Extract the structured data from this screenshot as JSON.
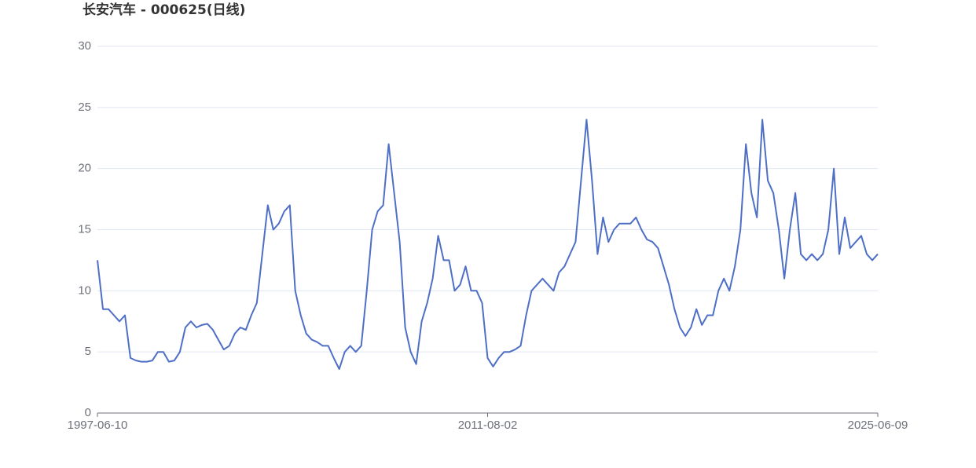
{
  "chart_data": {
    "type": "line",
    "title": "长安汽车 - 000625(日线)",
    "categories": [
      "1997-06-10",
      null,
      null,
      null,
      null,
      null,
      null,
      null,
      null,
      null,
      null,
      null,
      null,
      null,
      null,
      null,
      null,
      null,
      null,
      null,
      null,
      null,
      null,
      null,
      null,
      null,
      null,
      null,
      null,
      null,
      null,
      null,
      null,
      null,
      null,
      null,
      null,
      null,
      null,
      null,
      null,
      null,
      null,
      null,
      null,
      null,
      null,
      null,
      null,
      null,
      null,
      null,
      null,
      null,
      null,
      null,
      null,
      null,
      null,
      null,
      null,
      null,
      null,
      null,
      null,
      null,
      null,
      null,
      null,
      null,
      null,
      "2011-08-02",
      null,
      null,
      null,
      null,
      null,
      null,
      null,
      null,
      null,
      null,
      null,
      null,
      null,
      null,
      null,
      null,
      null,
      null,
      null,
      null,
      null,
      null,
      null,
      null,
      null,
      null,
      null,
      null,
      null,
      null,
      null,
      null,
      null,
      null,
      null,
      null,
      null,
      null,
      null,
      null,
      null,
      null,
      null,
      null,
      null,
      null,
      null,
      null,
      null,
      null,
      null,
      null,
      null,
      null,
      null,
      null,
      null,
      null,
      null,
      null,
      null,
      null,
      null,
      null,
      null,
      null,
      null,
      null,
      null,
      null,
      "2025-06-09"
    ],
    "series": [
      {
        "name": "000625",
        "color": "#4e6fc6",
        "values": [
          12.5,
          8.5,
          8.5,
          8,
          7.5,
          8,
          4.5,
          4.3,
          4.2,
          4.2,
          4.3,
          5,
          5,
          4.2,
          4.3,
          5,
          7,
          7.5,
          7,
          7.2,
          7.3,
          6.8,
          6,
          5.2,
          5.5,
          6.5,
          7,
          6.8,
          8,
          9,
          13,
          17,
          15,
          15.5,
          16.5,
          17,
          10,
          8,
          6.5,
          6,
          5.8,
          5.5,
          5.5,
          4.5,
          3.6,
          5,
          5.5,
          5,
          5.5,
          10,
          15,
          16.5,
          17,
          22,
          18,
          14,
          7,
          5,
          4,
          7.5,
          9,
          11,
          14.5,
          12.5,
          12.5,
          10,
          10.5,
          12,
          10,
          10,
          9,
          4.5,
          3.8,
          4.5,
          5,
          5,
          5.2,
          5.5,
          8,
          10,
          10.5,
          11,
          10.5,
          10,
          11.5,
          12,
          13,
          14,
          19,
          24,
          19,
          13,
          16,
          14,
          15,
          15.5,
          15.5,
          15.5,
          16,
          15,
          14.2,
          14,
          13.5,
          12,
          10.5,
          8.5,
          7,
          6.3,
          7,
          8.5,
          7.2,
          8,
          8,
          10,
          11,
          10,
          12,
          15,
          22,
          18,
          16,
          24,
          19,
          18,
          15,
          11,
          15,
          18,
          13,
          12.5,
          13,
          12.5,
          13,
          15,
          20,
          13,
          16,
          13.5,
          14,
          14.5,
          13,
          12.5,
          13
        ]
      }
    ],
    "ylim": [
      0,
      30
    ],
    "yticks": [
      0,
      5,
      10,
      15,
      20,
      25,
      30
    ],
    "grid": true
  }
}
